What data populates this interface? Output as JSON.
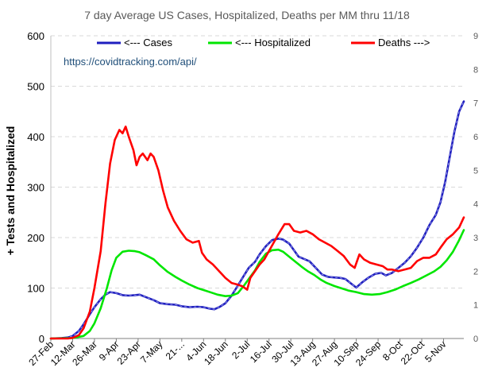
{
  "chart_data": {
    "type": "line",
    "title": "7 day Average US Cases, Hospitalized, Deaths per MM  thru  11/18",
    "ylabel": "+ Tests and Hospitalized",
    "annotation": "https://covidtracking.com/api/",
    "x_start": "2020-02-27",
    "x_end": "2020-11-18",
    "x_ticks": [
      "27-Feb",
      "12-Mar",
      "26-Mar",
      "9-Apr",
      "23-Apr",
      "7-May",
      "21-...",
      "4-Jun",
      "18-Jun",
      "2-Jul",
      "16-Jul",
      "30-Jul",
      "13-Aug",
      "27-Aug",
      "10-Sep",
      "24-Sep",
      "8-Oct",
      "22-Oct",
      "5-Nov"
    ],
    "x_tick_dates": [
      "2020-02-27",
      "2020-03-12",
      "2020-03-26",
      "2020-04-09",
      "2020-04-23",
      "2020-05-07",
      "2020-05-21",
      "2020-06-04",
      "2020-06-18",
      "2020-07-02",
      "2020-07-16",
      "2020-07-30",
      "2020-08-13",
      "2020-08-27",
      "2020-09-10",
      "2020-09-24",
      "2020-10-08",
      "2020-10-22",
      "2020-11-05"
    ],
    "y_left": {
      "min": 0,
      "max": 600,
      "ticks": [
        "0",
        "100",
        "200",
        "300",
        "400",
        "500",
        "600"
      ]
    },
    "y_right": {
      "min": 0,
      "max": 9,
      "ticks": [
        "0",
        "1",
        "2",
        "3",
        "4",
        "5",
        "6",
        "7",
        "8",
        "9"
      ]
    },
    "grid": true,
    "legend_position": "top",
    "series": [
      {
        "name": "<--- Cases",
        "axis": "left",
        "color": "#1f1fbf",
        "points": [
          [
            "2020-02-27",
            0
          ],
          [
            "2020-03-05",
            1
          ],
          [
            "2020-03-09",
            2
          ],
          [
            "2020-03-12",
            5
          ],
          [
            "2020-03-16",
            15
          ],
          [
            "2020-03-19",
            28
          ],
          [
            "2020-03-23",
            48
          ],
          [
            "2020-03-26",
            62
          ],
          [
            "2020-03-30",
            78
          ],
          [
            "2020-04-02",
            87
          ],
          [
            "2020-04-05",
            92
          ],
          [
            "2020-04-09",
            90
          ],
          [
            "2020-04-13",
            86
          ],
          [
            "2020-04-17",
            85
          ],
          [
            "2020-04-21",
            86
          ],
          [
            "2020-04-24",
            87
          ],
          [
            "2020-04-28",
            82
          ],
          [
            "2020-05-03",
            76
          ],
          [
            "2020-05-07",
            70
          ],
          [
            "2020-05-12",
            68
          ],
          [
            "2020-05-17",
            67
          ],
          [
            "2020-05-21",
            64
          ],
          [
            "2020-05-26",
            62
          ],
          [
            "2020-05-31",
            63
          ],
          [
            "2020-06-04",
            62
          ],
          [
            "2020-06-08",
            59
          ],
          [
            "2020-06-11",
            58
          ],
          [
            "2020-06-14",
            62
          ],
          [
            "2020-06-18",
            70
          ],
          [
            "2020-06-22",
            85
          ],
          [
            "2020-06-26",
            105
          ],
          [
            "2020-06-30",
            125
          ],
          [
            "2020-07-03",
            140
          ],
          [
            "2020-07-07",
            152
          ],
          [
            "2020-07-10",
            167
          ],
          [
            "2020-07-14",
            183
          ],
          [
            "2020-07-18",
            195
          ],
          [
            "2020-07-22",
            198
          ],
          [
            "2020-07-25",
            196
          ],
          [
            "2020-07-29",
            188
          ],
          [
            "2020-08-01",
            175
          ],
          [
            "2020-08-04",
            162
          ],
          [
            "2020-08-08",
            157
          ],
          [
            "2020-08-11",
            153
          ],
          [
            "2020-08-15",
            140
          ],
          [
            "2020-08-19",
            127
          ],
          [
            "2020-08-23",
            122
          ],
          [
            "2020-08-27",
            121
          ],
          [
            "2020-08-31",
            120
          ],
          [
            "2020-09-03",
            118
          ],
          [
            "2020-09-07",
            108
          ],
          [
            "2020-09-10",
            101
          ],
          [
            "2020-09-14",
            112
          ],
          [
            "2020-09-18",
            121
          ],
          [
            "2020-09-22",
            128
          ],
          [
            "2020-09-26",
            130
          ],
          [
            "2020-09-29",
            125
          ],
          [
            "2020-10-03",
            130
          ],
          [
            "2020-10-07",
            140
          ],
          [
            "2020-10-11",
            150
          ],
          [
            "2020-10-15",
            163
          ],
          [
            "2020-10-19",
            180
          ],
          [
            "2020-10-23",
            200
          ],
          [
            "2020-10-27",
            225
          ],
          [
            "2020-10-31",
            245
          ],
          [
            "2020-11-03",
            270
          ],
          [
            "2020-11-06",
            310
          ],
          [
            "2020-11-09",
            360
          ],
          [
            "2020-11-12",
            410
          ],
          [
            "2020-11-15",
            450
          ],
          [
            "2020-11-18",
            470
          ]
        ]
      },
      {
        "name": "<--- Hospitalized",
        "axis": "left",
        "color": "#00e600",
        "points": [
          [
            "2020-02-27",
            0
          ],
          [
            "2020-03-12",
            1
          ],
          [
            "2020-03-19",
            5
          ],
          [
            "2020-03-23",
            15
          ],
          [
            "2020-03-26",
            30
          ],
          [
            "2020-03-30",
            60
          ],
          [
            "2020-04-03",
            100
          ],
          [
            "2020-04-06",
            135
          ],
          [
            "2020-04-09",
            160
          ],
          [
            "2020-04-13",
            172
          ],
          [
            "2020-04-17",
            174
          ],
          [
            "2020-04-21",
            173
          ],
          [
            "2020-04-24",
            171
          ],
          [
            "2020-04-28",
            165
          ],
          [
            "2020-05-03",
            157
          ],
          [
            "2020-05-07",
            145
          ],
          [
            "2020-05-12",
            132
          ],
          [
            "2020-05-17",
            122
          ],
          [
            "2020-05-21",
            115
          ],
          [
            "2020-05-26",
            107
          ],
          [
            "2020-05-31",
            100
          ],
          [
            "2020-06-04",
            96
          ],
          [
            "2020-06-09",
            91
          ],
          [
            "2020-06-13",
            87
          ],
          [
            "2020-06-18",
            84
          ],
          [
            "2020-06-22",
            85
          ],
          [
            "2020-06-26",
            90
          ],
          [
            "2020-06-30",
            105
          ],
          [
            "2020-07-03",
            118
          ],
          [
            "2020-07-07",
            135
          ],
          [
            "2020-07-10",
            152
          ],
          [
            "2020-07-14",
            168
          ],
          [
            "2020-07-18",
            175
          ],
          [
            "2020-07-22",
            176
          ],
          [
            "2020-07-25",
            172
          ],
          [
            "2020-07-29",
            162
          ],
          [
            "2020-08-02",
            152
          ],
          [
            "2020-08-06",
            142
          ],
          [
            "2020-08-10",
            133
          ],
          [
            "2020-08-14",
            126
          ],
          [
            "2020-08-18",
            117
          ],
          [
            "2020-08-22",
            110
          ],
          [
            "2020-08-27",
            104
          ],
          [
            "2020-09-01",
            99
          ],
          [
            "2020-09-05",
            95
          ],
          [
            "2020-09-10",
            92
          ],
          [
            "2020-09-15",
            88
          ],
          [
            "2020-09-20",
            87
          ],
          [
            "2020-09-25",
            88
          ],
          [
            "2020-09-30",
            92
          ],
          [
            "2020-10-05",
            97
          ],
          [
            "2020-10-10",
            104
          ],
          [
            "2020-10-15",
            110
          ],
          [
            "2020-10-20",
            117
          ],
          [
            "2020-10-25",
            125
          ],
          [
            "2020-10-30",
            133
          ],
          [
            "2020-11-03",
            142
          ],
          [
            "2020-11-07",
            155
          ],
          [
            "2020-11-11",
            172
          ],
          [
            "2020-11-15",
            195
          ],
          [
            "2020-11-18",
            215
          ]
        ]
      },
      {
        "name": "Deaths --->",
        "axis": "right",
        "color": "#ff0000",
        "points": [
          [
            "2020-02-27",
            0
          ],
          [
            "2020-03-09",
            0
          ],
          [
            "2020-03-12",
            0.02
          ],
          [
            "2020-03-16",
            0.1
          ],
          [
            "2020-03-19",
            0.3
          ],
          [
            "2020-03-23",
            0.8
          ],
          [
            "2020-03-26",
            1.5
          ],
          [
            "2020-03-30",
            2.6
          ],
          [
            "2020-04-02",
            4.0
          ],
          [
            "2020-04-05",
            5.2
          ],
          [
            "2020-04-08",
            5.9
          ],
          [
            "2020-04-11",
            6.2
          ],
          [
            "2020-04-13",
            6.1
          ],
          [
            "2020-04-15",
            6.3
          ],
          [
            "2020-04-17",
            6.0
          ],
          [
            "2020-04-20",
            5.6
          ],
          [
            "2020-04-22",
            5.15
          ],
          [
            "2020-04-24",
            5.4
          ],
          [
            "2020-04-26",
            5.5
          ],
          [
            "2020-04-29",
            5.3
          ],
          [
            "2020-05-01",
            5.5
          ],
          [
            "2020-05-03",
            5.4
          ],
          [
            "2020-05-06",
            5.0
          ],
          [
            "2020-05-09",
            4.4
          ],
          [
            "2020-05-12",
            3.9
          ],
          [
            "2020-05-16",
            3.5
          ],
          [
            "2020-05-20",
            3.2
          ],
          [
            "2020-05-24",
            2.95
          ],
          [
            "2020-05-28",
            2.85
          ],
          [
            "2020-06-01",
            2.9
          ],
          [
            "2020-06-03",
            2.55
          ],
          [
            "2020-06-06",
            2.35
          ],
          [
            "2020-06-10",
            2.2
          ],
          [
            "2020-06-14",
            2.0
          ],
          [
            "2020-06-18",
            1.8
          ],
          [
            "2020-06-22",
            1.65
          ],
          [
            "2020-06-26",
            1.6
          ],
          [
            "2020-06-29",
            1.55
          ],
          [
            "2020-07-02",
            1.45
          ],
          [
            "2020-07-04",
            1.8
          ],
          [
            "2020-07-07",
            2.0
          ],
          [
            "2020-07-10",
            2.2
          ],
          [
            "2020-07-13",
            2.35
          ],
          [
            "2020-07-16",
            2.6
          ],
          [
            "2020-07-19",
            2.85
          ],
          [
            "2020-07-22",
            3.1
          ],
          [
            "2020-07-26",
            3.4
          ],
          [
            "2020-07-29",
            3.4
          ],
          [
            "2020-08-01",
            3.2
          ],
          [
            "2020-08-05",
            3.15
          ],
          [
            "2020-08-09",
            3.2
          ],
          [
            "2020-08-13",
            3.1
          ],
          [
            "2020-08-17",
            2.95
          ],
          [
            "2020-08-21",
            2.85
          ],
          [
            "2020-08-25",
            2.75
          ],
          [
            "2020-08-29",
            2.6
          ],
          [
            "2020-09-02",
            2.45
          ],
          [
            "2020-09-06",
            2.2
          ],
          [
            "2020-09-09",
            2.1
          ],
          [
            "2020-09-12",
            2.5
          ],
          [
            "2020-09-15",
            2.35
          ],
          [
            "2020-09-19",
            2.25
          ],
          [
            "2020-09-23",
            2.2
          ],
          [
            "2020-09-27",
            2.15
          ],
          [
            "2020-09-30",
            2.05
          ],
          [
            "2020-10-03",
            2.05
          ],
          [
            "2020-10-07",
            2.0
          ],
          [
            "2020-10-11",
            2.05
          ],
          [
            "2020-10-15",
            2.1
          ],
          [
            "2020-10-19",
            2.3
          ],
          [
            "2020-10-23",
            2.4
          ],
          [
            "2020-10-27",
            2.4
          ],
          [
            "2020-10-31",
            2.5
          ],
          [
            "2020-11-03",
            2.7
          ],
          [
            "2020-11-07",
            2.95
          ],
          [
            "2020-11-11",
            3.1
          ],
          [
            "2020-11-15",
            3.3
          ],
          [
            "2020-11-18",
            3.6
          ]
        ]
      }
    ]
  }
}
